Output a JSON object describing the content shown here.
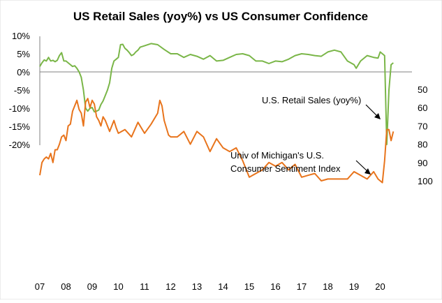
{
  "chart_data": [
    {
      "type": "line",
      "title": "US Retail Sales (yoy%) vs US Consumer Confidence",
      "xlabel": "",
      "ylabel": "",
      "x_tick_labels": [
        "07",
        "08",
        "09",
        "10",
        "11",
        "12",
        "13",
        "14",
        "15",
        "16",
        "17",
        "18",
        "19",
        "20"
      ],
      "y_tick_labels": [
        "10%",
        "5%",
        "0%",
        "-5%",
        "-10%",
        "-15%",
        "-20%"
      ],
      "ylim": [
        -20,
        10
      ],
      "grid": false,
      "annotation": "U.S. Retail Sales (yoy%)",
      "series": [
        {
          "color": "#7ab648",
          "x": [
            2007.0,
            2007.083,
            2007.167,
            2007.25,
            2007.333,
            2007.417,
            2007.5,
            2007.583,
            2007.667,
            2007.75,
            2007.833,
            2007.917,
            2008.0,
            2008.083,
            2008.167,
            2008.25,
            2008.333,
            2008.417,
            2008.5,
            2008.583,
            2008.667,
            2008.75,
            2008.833,
            2008.917,
            2009.0,
            2009.083,
            2009.167,
            2009.25,
            2009.333,
            2009.417,
            2009.5,
            2009.583,
            2009.667,
            2009.75,
            2009.833,
            2009.917,
            2010.0,
            2010.083,
            2010.167,
            2010.25,
            2010.333,
            2010.417,
            2010.5,
            2010.583,
            2010.667,
            2010.75,
            2010.833,
            2010.917,
            2011.0,
            2011.25,
            2011.5,
            2011.75,
            2012.0,
            2012.25,
            2012.5,
            2012.75,
            2013.0,
            2013.25,
            2013.5,
            2013.75,
            2014.0,
            2014.25,
            2014.5,
            2014.75,
            2015.0,
            2015.25,
            2015.5,
            2015.75,
            2016.0,
            2016.25,
            2016.5,
            2016.75,
            2017.0,
            2017.25,
            2017.5,
            2017.75,
            2018.0,
            2018.25,
            2018.5,
            2018.75,
            2019.0,
            2019.083,
            2019.25,
            2019.5,
            2019.75,
            2019.917,
            2020.0,
            2020.083,
            2020.167,
            2020.25,
            2020.333,
            2020.417,
            2020.5
          ],
          "values": [
            1.5,
            2.5,
            3.3,
            3.0,
            4.0,
            3.0,
            3.2,
            2.8,
            3.2,
            4.5,
            5.3,
            3.0,
            3.0,
            2.5,
            2.0,
            1.5,
            1.7,
            1.0,
            0.0,
            -1.5,
            -5.0,
            -10.0,
            -10.8,
            -10.0,
            -9.8,
            -11.0,
            -10.8,
            -10.5,
            -9.0,
            -8.0,
            -6.5,
            -5.0,
            -3.0,
            1.0,
            3.0,
            3.5,
            4.0,
            7.5,
            7.6,
            6.5,
            6.0,
            5.3,
            4.5,
            4.8,
            5.5,
            6.0,
            6.8,
            7.0,
            7.2,
            7.8,
            7.5,
            6.2,
            5.0,
            5.0,
            4.0,
            4.8,
            4.3,
            3.5,
            4.5,
            3.0,
            3.2,
            4.0,
            4.8,
            5.0,
            4.5,
            3.0,
            3.0,
            2.3,
            3.0,
            2.8,
            3.5,
            4.5,
            5.0,
            4.8,
            4.5,
            4.3,
            5.5,
            6.0,
            5.5,
            3.0,
            2.0,
            1.0,
            3.0,
            4.5,
            4.0,
            3.8,
            5.5,
            5.0,
            4.5,
            -20.0,
            -5.0,
            2.0,
            2.5
          ]
        }
      ]
    },
    {
      "type": "line",
      "title": "",
      "xlabel": "",
      "ylabel": "",
      "x_tick_labels": [
        "07",
        "08",
        "09",
        "10",
        "11",
        "12",
        "13",
        "14",
        "15",
        "16",
        "17",
        "18",
        "19",
        "20"
      ],
      "y_tick_labels": [
        "100",
        "90",
        "80",
        "70",
        "60",
        "50"
      ],
      "ylim": [
        50,
        100
      ],
      "grid": false,
      "annotation_lines": [
        "Univ of Michigan's U.S.",
        "Consumer Sentiment Index"
      ],
      "series": [
        {
          "color": "#e8741c",
          "x": [
            2007.0,
            2007.083,
            2007.167,
            2007.25,
            2007.333,
            2007.417,
            2007.5,
            2007.583,
            2007.667,
            2007.75,
            2007.833,
            2007.917,
            2008.0,
            2008.083,
            2008.167,
            2008.25,
            2008.333,
            2008.417,
            2008.5,
            2008.583,
            2008.667,
            2008.75,
            2008.833,
            2008.917,
            2009.0,
            2009.083,
            2009.167,
            2009.25,
            2009.333,
            2009.417,
            2009.5,
            2009.583,
            2009.667,
            2009.75,
            2009.833,
            2009.917,
            2010.0,
            2010.25,
            2010.5,
            2010.75,
            2011.0,
            2011.25,
            2011.5,
            2011.583,
            2011.667,
            2011.75,
            2011.917,
            2012.0,
            2012.25,
            2012.5,
            2012.75,
            2013.0,
            2013.25,
            2013.5,
            2013.75,
            2014.0,
            2014.25,
            2014.5,
            2014.75,
            2015.0,
            2015.25,
            2015.5,
            2015.75,
            2016.0,
            2016.25,
            2016.5,
            2016.75,
            2017.0,
            2017.25,
            2017.5,
            2017.75,
            2018.0,
            2018.25,
            2018.5,
            2018.75,
            2019.0,
            2019.25,
            2019.5,
            2019.75,
            2019.917,
            2020.0,
            2020.083,
            2020.167,
            2020.25,
            2020.333,
            2020.417,
            2020.5
          ],
          "values": [
            97,
            90,
            88,
            87,
            88,
            85,
            90,
            83,
            83,
            80,
            76,
            75,
            78,
            70,
            69,
            62,
            59,
            56,
            61,
            63,
            70,
            57,
            55,
            60,
            56,
            58,
            65,
            67,
            70,
            65,
            67,
            70,
            73,
            70,
            67,
            71,
            74,
            72,
            76,
            68,
            74,
            69,
            63,
            56,
            59,
            67,
            75,
            76,
            76,
            73,
            80,
            73,
            76,
            84,
            77,
            82,
            84,
            82,
            89,
            98,
            96,
            94,
            90,
            92,
            90,
            94,
            91,
            98,
            97,
            96,
            100,
            99,
            99,
            99,
            99,
            95,
            97,
            99,
            95,
            99,
            100,
            101,
            89,
            72,
            72,
            78,
            73
          ]
        }
      ]
    }
  ]
}
